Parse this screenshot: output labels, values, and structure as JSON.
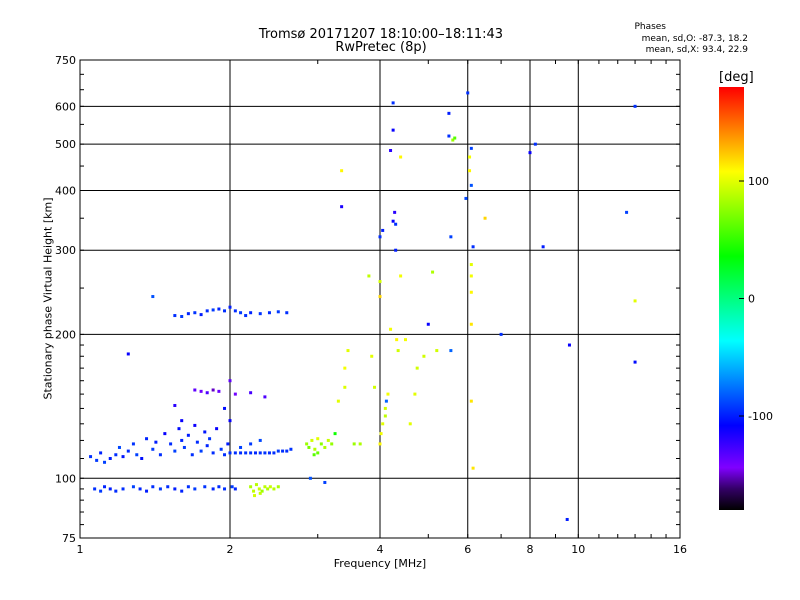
{
  "title_line1": "Tromsø 20171207 18:10:00–18:11:43",
  "title_line2": "RwPretec (8p)",
  "phases": {
    "heading": "Phases",
    "line_o": "mean, sd,O: -87.3, 18.2",
    "line_x": "mean, sd,X:  93.4, 22.9"
  },
  "colorbar": {
    "unit": "[deg]",
    "ticks": [
      {
        "value": 100,
        "label": "100"
      },
      {
        "value": 0,
        "label": "0"
      },
      {
        "value": -100,
        "label": "-100"
      }
    ],
    "range": [
      -180,
      180
    ]
  },
  "chart_data": {
    "type": "scatter",
    "xlabel": "Frequency [MHz]",
    "ylabel": "Stationary phase Virtual Height [km]",
    "xscale": "log",
    "yscale": "log",
    "xlim": [
      1,
      16
    ],
    "ylim": [
      75,
      750
    ],
    "xticks": [
      {
        "v": 1,
        "label": "1"
      },
      {
        "v": 2,
        "label": "2"
      },
      {
        "v": 4,
        "label": "4"
      },
      {
        "v": 6,
        "label": "6"
      },
      {
        "v": 8,
        "label": "8"
      },
      {
        "v": 10,
        "label": "10"
      },
      {
        "v": 16,
        "label": "16"
      }
    ],
    "xgrid": [
      2,
      4,
      6,
      8,
      10
    ],
    "yticks": [
      {
        "v": 75,
        "label": "75"
      },
      {
        "v": 100,
        "label": "100"
      },
      {
        "v": 200,
        "label": "200"
      },
      {
        "v": 300,
        "label": "300"
      },
      {
        "v": 400,
        "label": "400"
      },
      {
        "v": 500,
        "label": "500"
      },
      {
        "v": 600,
        "label": "600"
      },
      {
        "v": 750,
        "label": "750"
      }
    ],
    "ygrid": [
      100,
      200,
      300,
      400,
      500,
      600
    ],
    "grid": true,
    "color_encoding": "phase [deg]",
    "points": [
      [
        1.05,
        111,
        -95
      ],
      [
        1.08,
        109,
        -92
      ],
      [
        1.1,
        113,
        -98
      ],
      [
        1.12,
        108,
        -90
      ],
      [
        1.15,
        110,
        -100
      ],
      [
        1.18,
        112,
        -95
      ],
      [
        1.2,
        116,
        -88
      ],
      [
        1.22,
        111,
        -102
      ],
      [
        1.25,
        114,
        -96
      ],
      [
        1.28,
        118,
        -94
      ],
      [
        1.3,
        112,
        -90
      ],
      [
        1.33,
        110,
        -104
      ],
      [
        1.36,
        121,
        -98
      ],
      [
        1.4,
        115,
        -92
      ],
      [
        1.42,
        119,
        -100
      ],
      [
        1.45,
        112,
        -95
      ],
      [
        1.48,
        124,
        -110
      ],
      [
        1.52,
        118,
        -96
      ],
      [
        1.55,
        114,
        -90
      ],
      [
        1.58,
        127,
        -105
      ],
      [
        1.6,
        120,
        -98
      ],
      [
        1.62,
        116,
        -92
      ],
      [
        1.65,
        123,
        -100
      ],
      [
        1.68,
        112,
        -95
      ],
      [
        1.7,
        129,
        -112
      ],
      [
        1.72,
        119,
        -96
      ],
      [
        1.75,
        114,
        -90
      ],
      [
        1.78,
        125,
        -102
      ],
      [
        1.8,
        117,
        -98
      ],
      [
        1.82,
        121,
        -94
      ],
      [
        1.85,
        113,
        -96
      ],
      [
        1.88,
        127,
        -110
      ],
      [
        1.92,
        115,
        -92
      ],
      [
        1.95,
        112,
        -95
      ],
      [
        1.98,
        118,
        -100
      ],
      [
        2.0,
        113,
        -95
      ],
      [
        2.05,
        113,
        -95
      ],
      [
        2.1,
        113,
        -96
      ],
      [
        2.15,
        113,
        -94
      ],
      [
        2.2,
        113,
        -95
      ],
      [
        2.25,
        113,
        -97
      ],
      [
        2.3,
        113,
        -95
      ],
      [
        2.35,
        113,
        -94
      ],
      [
        2.4,
        113,
        -96
      ],
      [
        2.45,
        113,
        -95
      ],
      [
        2.5,
        114,
        -92
      ],
      [
        2.55,
        114,
        -95
      ],
      [
        2.6,
        114,
        -96
      ],
      [
        2.65,
        115,
        -94
      ],
      [
        2.1,
        116,
        -90
      ],
      [
        2.3,
        120,
        -88
      ],
      [
        2.2,
        118,
        -92
      ],
      [
        1.07,
        95,
        -95
      ],
      [
        1.1,
        94,
        -92
      ],
      [
        1.12,
        96,
        -98
      ],
      [
        1.15,
        95,
        -100
      ],
      [
        1.18,
        94,
        -96
      ],
      [
        1.22,
        95,
        -95
      ],
      [
        1.28,
        96,
        -90
      ],
      [
        1.32,
        95,
        -98
      ],
      [
        1.36,
        94,
        -100
      ],
      [
        1.4,
        96,
        -95
      ],
      [
        1.45,
        95,
        -92
      ],
      [
        1.5,
        96,
        -96
      ],
      [
        1.55,
        95,
        -100
      ],
      [
        1.6,
        94,
        -98
      ],
      [
        1.65,
        96,
        -95
      ],
      [
        1.7,
        95,
        -92
      ],
      [
        1.78,
        96,
        -94
      ],
      [
        1.85,
        95,
        -98
      ],
      [
        1.9,
        96,
        -96
      ],
      [
        1.95,
        95,
        -95
      ],
      [
        2.02,
        96,
        -92
      ],
      [
        2.05,
        95,
        -98
      ],
      [
        2.2,
        96,
        85
      ],
      [
        2.23,
        94,
        90
      ],
      [
        2.26,
        97,
        88
      ],
      [
        2.29,
        95,
        92
      ],
      [
        2.32,
        94,
        80
      ],
      [
        2.35,
        96,
        90
      ],
      [
        2.38,
        95,
        86
      ],
      [
        2.41,
        96,
        92
      ],
      [
        2.45,
        95,
        88
      ],
      [
        2.5,
        96,
        84
      ],
      [
        2.24,
        92,
        95
      ],
      [
        2.3,
        93,
        90
      ],
      [
        1.55,
        219,
        -95
      ],
      [
        1.6,
        218,
        -92
      ],
      [
        1.65,
        221,
        -98
      ],
      [
        1.7,
        222,
        -94
      ],
      [
        1.75,
        220,
        -100
      ],
      [
        1.8,
        224,
        -96
      ],
      [
        1.85,
        225,
        -92
      ],
      [
        1.9,
        226,
        -98
      ],
      [
        1.95,
        224,
        -95
      ],
      [
        2.0,
        228,
        -100
      ],
      [
        2.05,
        224,
        -96
      ],
      [
        2.1,
        222,
        -92
      ],
      [
        2.15,
        219,
        -95
      ],
      [
        2.2,
        222,
        -98
      ],
      [
        2.3,
        221,
        -94
      ],
      [
        2.4,
        222,
        -96
      ],
      [
        2.5,
        223,
        -92
      ],
      [
        2.6,
        222,
        -95
      ],
      [
        1.4,
        240,
        -85
      ],
      [
        1.7,
        153,
        -135
      ],
      [
        1.75,
        152,
        -140
      ],
      [
        1.8,
        151,
        -130
      ],
      [
        1.85,
        153,
        -145
      ],
      [
        1.9,
        152,
        -138
      ],
      [
        2.0,
        160,
        -135
      ],
      [
        2.05,
        150,
        -140
      ],
      [
        2.2,
        151,
        -128
      ],
      [
        2.35,
        148,
        -130
      ],
      [
        1.25,
        182,
        -110
      ],
      [
        1.55,
        142,
        -120
      ],
      [
        1.6,
        132,
        -110
      ],
      [
        1.95,
        140,
        -105
      ],
      [
        2.0,
        132,
        -110
      ],
      [
        2.85,
        118,
        80
      ],
      [
        2.88,
        116,
        70
      ],
      [
        2.92,
        120,
        95
      ],
      [
        2.96,
        115,
        88
      ],
      [
        3.0,
        121,
        100
      ],
      [
        3.05,
        118,
        75
      ],
      [
        3.1,
        116,
        85
      ],
      [
        3.15,
        120,
        92
      ],
      [
        3.2,
        118,
        78
      ],
      [
        2.95,
        112,
        60
      ],
      [
        3.0,
        113,
        65
      ],
      [
        2.9,
        100,
        -85
      ],
      [
        3.1,
        98,
        -90
      ],
      [
        3.25,
        124,
        40
      ],
      [
        3.35,
        440,
        110
      ],
      [
        3.35,
        370,
        -115
      ],
      [
        3.45,
        185,
        100
      ],
      [
        3.4,
        170,
        105
      ],
      [
        3.4,
        155,
        98
      ],
      [
        3.3,
        145,
        100
      ],
      [
        3.55,
        118,
        80
      ],
      [
        3.65,
        118,
        85
      ],
      [
        3.8,
        265,
        90
      ],
      [
        3.85,
        180,
        100
      ],
      [
        3.9,
        155,
        95
      ],
      [
        4.0,
        320,
        -95
      ],
      [
        4.05,
        330,
        -100
      ],
      [
        4.0,
        258,
        95
      ],
      [
        4.0,
        240,
        120
      ],
      [
        4.0,
        118,
        110
      ],
      [
        4.02,
        124,
        105
      ],
      [
        4.05,
        130,
        100
      ],
      [
        4.1,
        135,
        90
      ],
      [
        4.1,
        140,
        95
      ],
      [
        4.12,
        145,
        -80
      ],
      [
        4.15,
        150,
        105
      ],
      [
        4.2,
        205,
        105
      ],
      [
        4.25,
        610,
        -95
      ],
      [
        4.25,
        535,
        -110
      ],
      [
        4.2,
        485,
        -120
      ],
      [
        4.25,
        345,
        -110
      ],
      [
        4.28,
        360,
        -120
      ],
      [
        4.3,
        340,
        -95
      ],
      [
        4.3,
        300,
        -100
      ],
      [
        4.32,
        195,
        110
      ],
      [
        4.35,
        185,
        95
      ],
      [
        4.4,
        470,
        110
      ],
      [
        4.4,
        265,
        105
      ],
      [
        4.5,
        195,
        105
      ],
      [
        4.6,
        130,
        100
      ],
      [
        4.7,
        150,
        100
      ],
      [
        4.75,
        170,
        95
      ],
      [
        4.9,
        180,
        95
      ],
      [
        5.0,
        210,
        -110
      ],
      [
        5.1,
        270,
        85
      ],
      [
        5.2,
        185,
        95
      ],
      [
        5.5,
        580,
        -100
      ],
      [
        5.5,
        520,
        -95
      ],
      [
        5.55,
        320,
        -90
      ],
      [
        5.55,
        185,
        -80
      ],
      [
        5.6,
        510,
        80
      ],
      [
        5.65,
        515,
        60
      ],
      [
        5.95,
        385,
        -88
      ],
      [
        6.0,
        640,
        -95
      ],
      [
        6.05,
        470,
        105
      ],
      [
        6.05,
        440,
        110
      ],
      [
        6.1,
        490,
        -90
      ],
      [
        6.1,
        410,
        -85
      ],
      [
        6.15,
        305,
        -95
      ],
      [
        6.1,
        280,
        100
      ],
      [
        6.1,
        265,
        105
      ],
      [
        6.1,
        245,
        110
      ],
      [
        6.1,
        210,
        115
      ],
      [
        6.1,
        145,
        115
      ],
      [
        6.15,
        105,
        115
      ],
      [
        6.5,
        350,
        120
      ],
      [
        7.0,
        200,
        -95
      ],
      [
        8.0,
        480,
        -110
      ],
      [
        8.2,
        500,
        -95
      ],
      [
        8.5,
        305,
        -100
      ],
      [
        9.5,
        82,
        -100
      ],
      [
        9.6,
        190,
        -110
      ],
      [
        12.5,
        360,
        -90
      ],
      [
        13.0,
        600,
        -95
      ],
      [
        13.0,
        235,
        100
      ],
      [
        13.0,
        175,
        -105
      ]
    ]
  }
}
